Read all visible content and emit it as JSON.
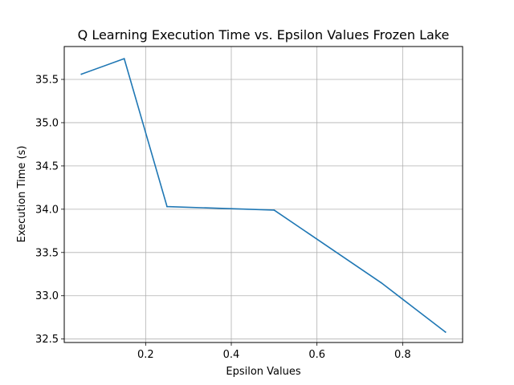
{
  "chart_data": {
    "type": "line",
    "title": "Q Learning Execution Time vs. Epsilon Values Frozen Lake",
    "xlabel": "Epsilon Values",
    "ylabel": "Execution Time (s)",
    "xlim": [
      0.01,
      0.94
    ],
    "ylim": [
      32.46,
      35.88
    ],
    "x_ticks": [
      0.2,
      0.4,
      0.6,
      0.8
    ],
    "y_ticks": [
      32.5,
      33.0,
      33.5,
      34.0,
      34.5,
      35.0,
      35.5
    ],
    "x_tick_labels": [
      "0.2",
      "0.4",
      "0.6",
      "0.8"
    ],
    "y_tick_labels": [
      "32.5",
      "33.0",
      "33.5",
      "34.0",
      "34.5",
      "35.0",
      "35.5"
    ],
    "grid": true,
    "series": [
      {
        "color": "#1f77b4",
        "x": [
          0.05,
          0.15,
          0.25,
          0.5,
          0.75,
          0.9
        ],
        "y": [
          35.56,
          35.74,
          34.03,
          33.99,
          33.15,
          32.58
        ]
      }
    ]
  }
}
